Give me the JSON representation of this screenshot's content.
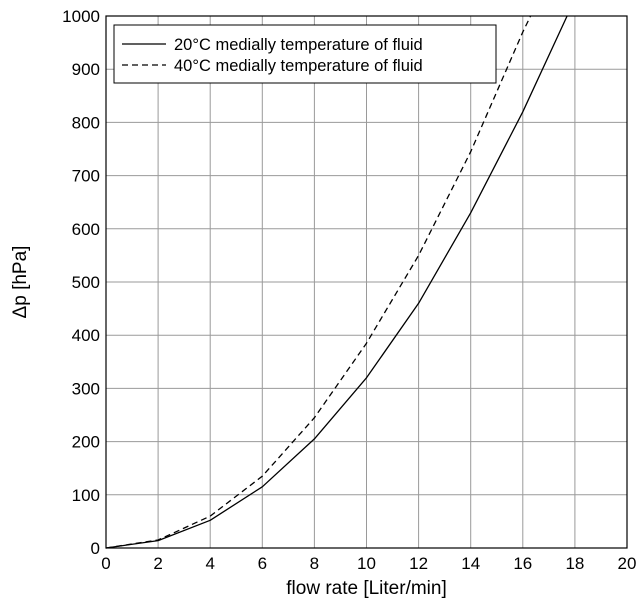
{
  "chart_data": {
    "type": "line",
    "xlabel": "flow rate [Liter/min]",
    "ylabel": "Δp [hPa]",
    "xlim": [
      0,
      20
    ],
    "ylim": [
      0,
      1000
    ],
    "xticks": [
      0,
      2,
      4,
      6,
      8,
      10,
      12,
      14,
      16,
      18,
      20
    ],
    "yticks": [
      0,
      100,
      200,
      300,
      400,
      500,
      600,
      700,
      800,
      900,
      1000
    ],
    "grid": true,
    "legend_position": "top-left",
    "series": [
      {
        "name": "20°C medially temperature of fluid",
        "style": "solid",
        "color": "#000000",
        "x": [
          0,
          2,
          4,
          6,
          8,
          10,
          12,
          14,
          16,
          17.7
        ],
        "y": [
          0,
          14,
          52,
          115,
          205,
          320,
          460,
          630,
          820,
          1000
        ]
      },
      {
        "name": "40°C medially temperature of fluid",
        "style": "dashed",
        "color": "#000000",
        "x": [
          0,
          2,
          4,
          6,
          8,
          10,
          12,
          14,
          16,
          16.3
        ],
        "y": [
          0,
          15,
          60,
          135,
          245,
          385,
          550,
          745,
          970,
          1000
        ]
      }
    ]
  }
}
